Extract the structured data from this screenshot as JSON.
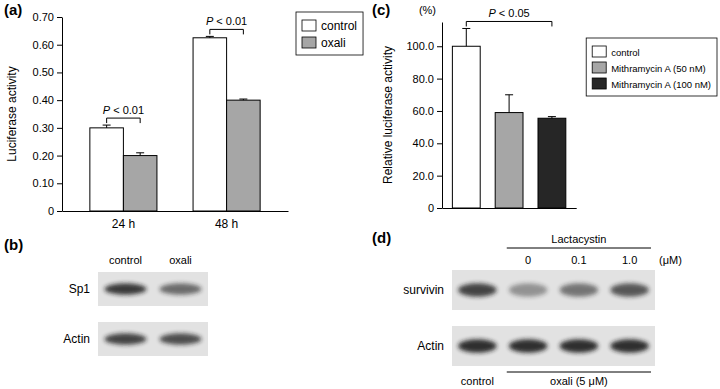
{
  "chart_data": [
    {
      "type": "bar",
      "title": "(a)",
      "categories": [
        "24 h",
        "48 h"
      ],
      "series": [
        {
          "name": "control",
          "color": "#ffffff",
          "values": [
            0.3,
            0.625
          ],
          "errors": [
            0.01,
            0.005
          ]
        },
        {
          "name": "oxali",
          "color": "#a6a6a6",
          "values": [
            0.2,
            0.4
          ],
          "errors": [
            0.01,
            0.004
          ]
        }
      ],
      "ylabel": "Luciferase activity",
      "ylim": [
        0,
        0.7
      ],
      "yticks": [
        0,
        {
          "value": 0.1,
          "label": "0.10"
        },
        {
          "value": 0.2,
          "label": "0.20"
        },
        {
          "value": 0.3,
          "label": "0.30"
        },
        {
          "value": 0.4,
          "label": "0.40"
        },
        {
          "value": 0.5,
          "label": "0.50"
        },
        {
          "value": 0.6,
          "label": "0.60"
        },
        {
          "value": 0.7,
          "label": "0.70"
        }
      ],
      "legend": "upper right",
      "annotations": [
        "P < 0.01",
        "P < 0.01"
      ]
    },
    {
      "type": "bar",
      "title": "(c)",
      "categories": [
        null
      ],
      "series": [
        {
          "name": "control",
          "color": "#ffffff",
          "values": [
            100
          ],
          "errors": [
            11
          ]
        },
        {
          "name": "Mithramycin A (50 nM)",
          "color": "#a6a6a6",
          "values": [
            59
          ],
          "errors": [
            11
          ]
        },
        {
          "name": "Mithramycin A (100 nM)",
          "color": "#262626",
          "values": [
            55.5
          ],
          "errors": [
            1
          ]
        }
      ],
      "ylabel": "Relative luciferase activity",
      "ylabel_unit": "(%)",
      "ylim": [
        0,
        115
      ],
      "yticks": [
        0,
        {
          "value": 20,
          "label": "20.0"
        },
        {
          "value": 40,
          "label": "40.0"
        },
        {
          "value": 60,
          "label": "60.0"
        },
        {
          "value": 80,
          "label": "80.0"
        },
        {
          "value": 100,
          "label": "100.0"
        }
      ],
      "legend": "upper right",
      "annotations": [
        "P < 0.05"
      ]
    }
  ],
  "blots": [
    {
      "title": "(b)",
      "lanes": [
        "control",
        "oxali"
      ],
      "rows": [
        {
          "label": "Sp1",
          "intensity": [
            0.85,
            0.6
          ]
        },
        {
          "label": "Actin",
          "intensity": [
            0.8,
            0.75
          ]
        }
      ]
    },
    {
      "title": "(d)",
      "control_lane": "control",
      "treatment": "Lactacystin",
      "doses": [
        "0",
        "0.1",
        "1.0"
      ],
      "unit": "(μM)",
      "group_label": "oxali (5 μM)",
      "rows": [
        {
          "label": "survivin",
          "intensity": [
            0.8,
            0.4,
            0.55,
            0.7
          ]
        },
        {
          "label": "Actin",
          "intensity": [
            0.9,
            0.9,
            0.9,
            0.9
          ]
        }
      ]
    }
  ]
}
